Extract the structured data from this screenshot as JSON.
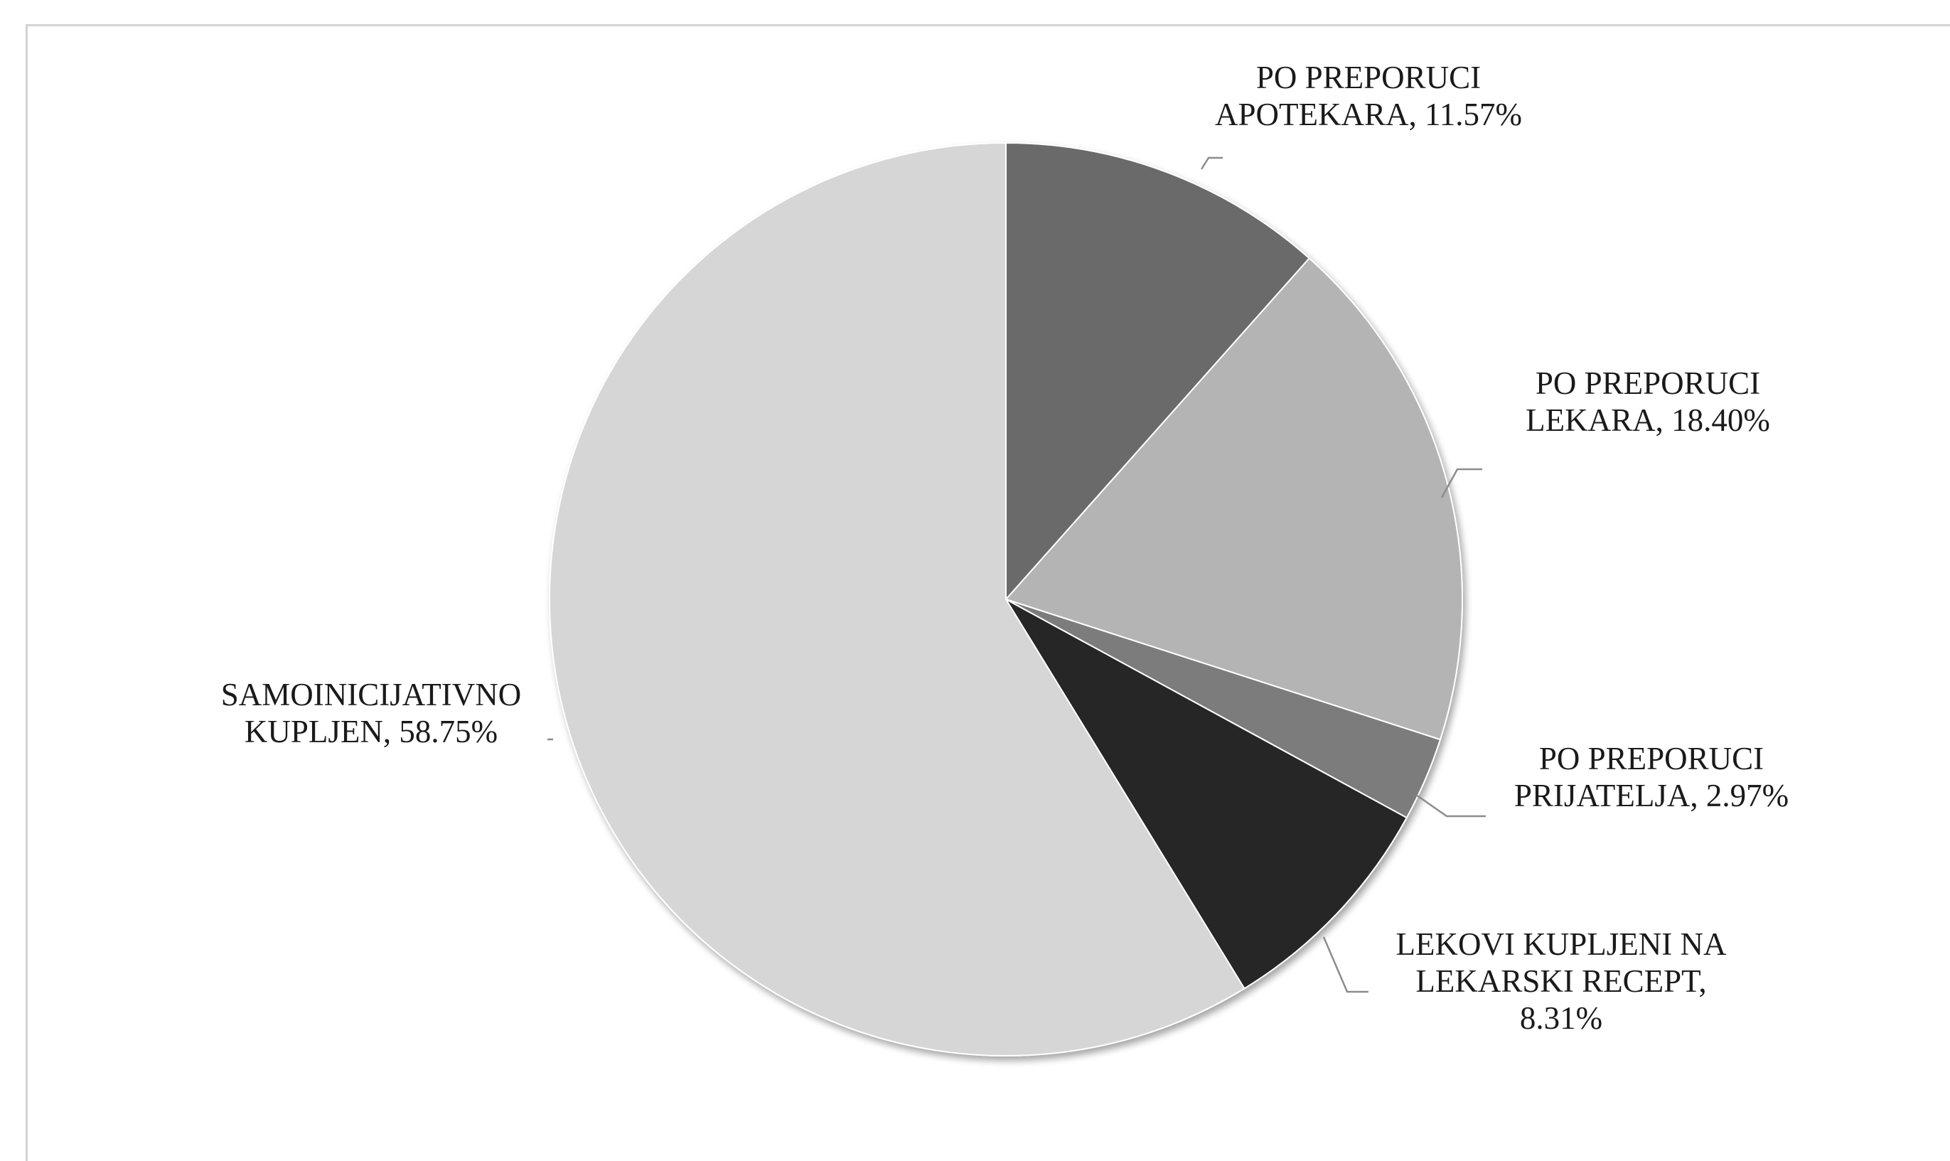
{
  "chart_data": {
    "type": "pie",
    "title": "",
    "slices": [
      {
        "label": "PO PREPORUCI APOTEKARA",
        "value": 11.57,
        "display": [
          "PO PREPORUCI",
          "APOTEKARA, 11.57%"
        ],
        "color": "#6b6b6b"
      },
      {
        "label": "PO PREPORUCI LEKARA",
        "value": 18.4,
        "display": [
          "PO PREPORUCI",
          "LEKARA, 18.40%"
        ],
        "color": "#b4b4b4"
      },
      {
        "label": "PO PREPORUCI PRIJATELJA",
        "value": 2.97,
        "display": [
          "PO PREPORUCI",
          "PRIJATELJA, 2.97%"
        ],
        "color": "#7c7c7c"
      },
      {
        "label": "LEKOVI KUPLJENI NA LEKARSKI RECEPT",
        "value": 8.31,
        "display": [
          "LEKOVI KUPLJENI NA",
          "LEKARSKI RECEPT,",
          "8.31%"
        ],
        "color": "#262626"
      },
      {
        "label": "SAMOINICIJATIVNO KUPLJEN",
        "value": 58.75,
        "display": [
          "SAMOINICIJATIVNO",
          "KUPLJEN, 58.75%"
        ],
        "color": "#d6d6d6"
      }
    ],
    "start_angle": "12 o'clock",
    "direction": "clockwise",
    "legend": "none",
    "data_labels": "outside with leader lines"
  }
}
